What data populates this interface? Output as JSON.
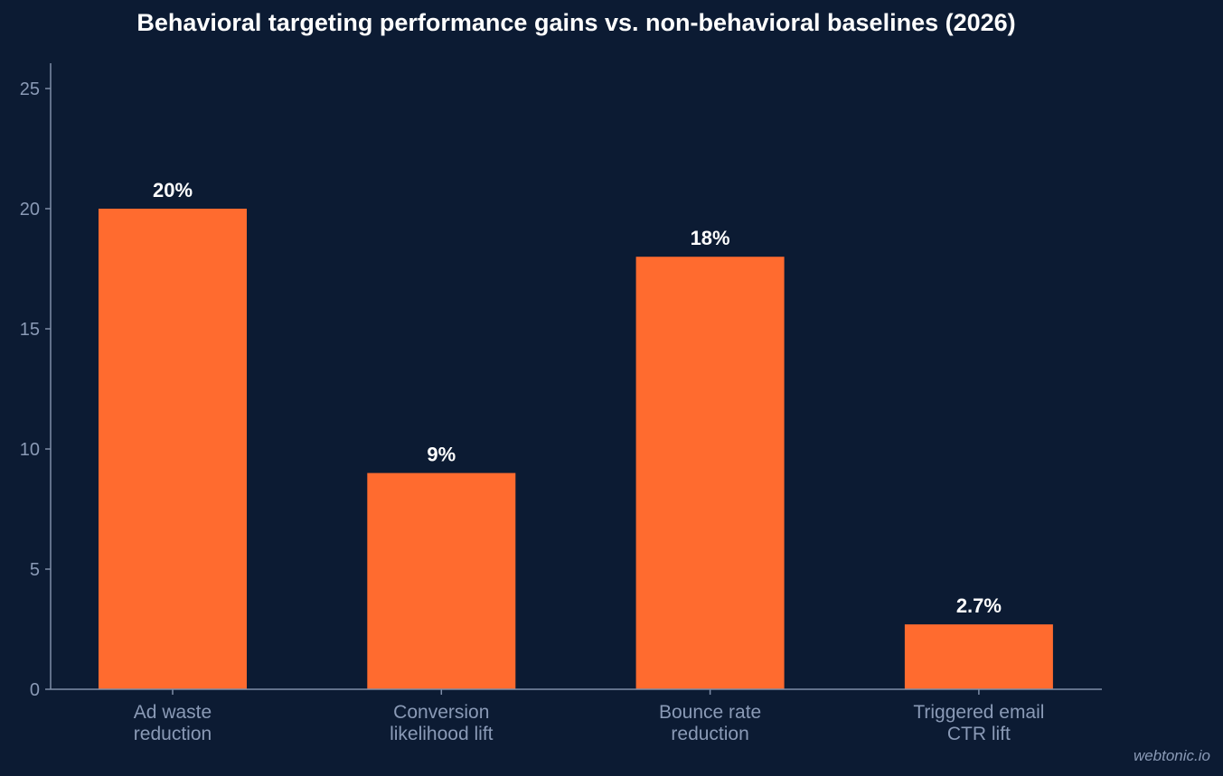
{
  "watermark": "webtonic.io",
  "colors": {
    "background": "#0c1b33",
    "bar": "#ff6b2f",
    "axis": "#7f8ea8",
    "tick_text": "#8a9ab6",
    "label_text": "#ffffff"
  },
  "chart_data": {
    "type": "bar",
    "title": "Behavioral targeting performance gains vs. non-behavioral baselines (2026)",
    "xlabel": "",
    "ylabel": "",
    "categories": [
      [
        "Ad waste",
        "reduction"
      ],
      [
        "Conversion",
        "likelihood lift"
      ],
      [
        "Bounce rate",
        "reduction"
      ],
      [
        "Triggered email",
        "CTR lift"
      ]
    ],
    "values": [
      20,
      9,
      18,
      2.7
    ],
    "data_labels": [
      "20%",
      "9%",
      "18%",
      "2.7%"
    ],
    "ylim": [
      0,
      26
    ],
    "yticks": [
      0,
      5,
      10,
      15,
      20,
      25
    ],
    "grid": false,
    "legend": "none"
  }
}
